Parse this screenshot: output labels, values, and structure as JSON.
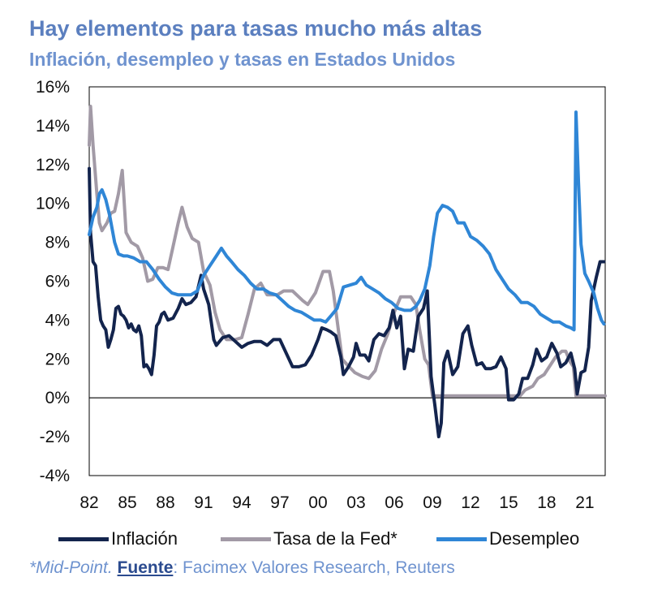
{
  "title": "Hay elementos para tasas mucho más altas",
  "subtitle": "Inflación, desempleo y tasas en Estados Unidos",
  "footnote": {
    "mid": "*Mid-Point.",
    "source_label": "Fuente",
    "source_text": ": Facimex Valores Research, Reuters"
  },
  "colors": {
    "inflation": "#13244d",
    "fed": "#a29aa6",
    "unemployment": "#2f86d6",
    "title": "#5b7fbf"
  },
  "chart_data": {
    "type": "line",
    "title": "Hay elementos para tasas mucho más altas",
    "subtitle": "Inflación, desempleo y tasas en Estados Unidos",
    "xlabel": "",
    "ylabel": "",
    "xlim": [
      1982,
      2022.6
    ],
    "ylim": [
      -4,
      16
    ],
    "y_ticks": [
      -4,
      -2,
      0,
      2,
      4,
      6,
      8,
      10,
      12,
      14,
      16
    ],
    "y_tick_labels": [
      "-4%",
      "-2%",
      "0%",
      "2%",
      "4%",
      "6%",
      "8%",
      "10%",
      "12%",
      "14%",
      "16%"
    ],
    "x_ticks": [
      1982,
      1985,
      1988,
      1991,
      1994,
      1997,
      2000,
      2003,
      2006,
      2009,
      2012,
      2015,
      2018,
      2021
    ],
    "x_tick_labels": [
      "82",
      "85",
      "88",
      "91",
      "94",
      "97",
      "00",
      "03",
      "06",
      "09",
      "12",
      "15",
      "18",
      "21"
    ],
    "legend_position": "bottom",
    "series": [
      {
        "name": "Inflación",
        "color": "#13244d",
        "points": [
          [
            1982.0,
            11.8
          ],
          [
            1982.1,
            8.5
          ],
          [
            1982.3,
            7.0
          ],
          [
            1982.5,
            6.8
          ],
          [
            1982.7,
            5.2
          ],
          [
            1982.9,
            4.0
          ],
          [
            1983.1,
            3.7
          ],
          [
            1983.3,
            3.5
          ],
          [
            1983.5,
            2.6
          ],
          [
            1983.7,
            3.0
          ],
          [
            1983.9,
            3.5
          ],
          [
            1984.1,
            4.6
          ],
          [
            1984.3,
            4.7
          ],
          [
            1984.5,
            4.3
          ],
          [
            1984.7,
            4.2
          ],
          [
            1984.9,
            4.0
          ],
          [
            1985.1,
            3.6
          ],
          [
            1985.3,
            3.8
          ],
          [
            1985.5,
            3.5
          ],
          [
            1985.7,
            3.4
          ],
          [
            1985.9,
            3.7
          ],
          [
            1986.1,
            3.2
          ],
          [
            1986.3,
            1.6
          ],
          [
            1986.5,
            1.7
          ],
          [
            1986.7,
            1.5
          ],
          [
            1986.9,
            1.2
          ],
          [
            1987.1,
            2.2
          ],
          [
            1987.3,
            3.7
          ],
          [
            1987.5,
            3.9
          ],
          [
            1987.7,
            4.3
          ],
          [
            1987.9,
            4.4
          ],
          [
            1988.2,
            4.0
          ],
          [
            1988.6,
            4.1
          ],
          [
            1989.0,
            4.6
          ],
          [
            1989.3,
            5.1
          ],
          [
            1989.6,
            4.8
          ],
          [
            1990.0,
            4.9
          ],
          [
            1990.4,
            5.2
          ],
          [
            1990.8,
            6.3
          ],
          [
            1991.0,
            5.6
          ],
          [
            1991.4,
            4.8
          ],
          [
            1991.8,
            3.0
          ],
          [
            1992.0,
            2.7
          ],
          [
            1992.5,
            3.1
          ],
          [
            1993.0,
            3.2
          ],
          [
            1993.5,
            2.9
          ],
          [
            1994.0,
            2.6
          ],
          [
            1994.5,
            2.8
          ],
          [
            1995.0,
            2.9
          ],
          [
            1995.5,
            2.9
          ],
          [
            1996.0,
            2.7
          ],
          [
            1996.5,
            3.0
          ],
          [
            1997.0,
            3.0
          ],
          [
            1997.5,
            2.3
          ],
          [
            1998.0,
            1.6
          ],
          [
            1998.5,
            1.6
          ],
          [
            1999.0,
            1.7
          ],
          [
            1999.5,
            2.2
          ],
          [
            2000.0,
            3.0
          ],
          [
            2000.3,
            3.6
          ],
          [
            2000.7,
            3.5
          ],
          [
            2001.0,
            3.4
          ],
          [
            2001.4,
            3.2
          ],
          [
            2001.8,
            2.1
          ],
          [
            2002.0,
            1.2
          ],
          [
            2002.4,
            1.6
          ],
          [
            2002.8,
            2.1
          ],
          [
            2003.0,
            2.8
          ],
          [
            2003.3,
            2.2
          ],
          [
            2003.7,
            2.2
          ],
          [
            2004.0,
            1.9
          ],
          [
            2004.4,
            3.0
          ],
          [
            2004.8,
            3.3
          ],
          [
            2005.2,
            3.2
          ],
          [
            2005.6,
            3.6
          ],
          [
            2005.9,
            4.5
          ],
          [
            2006.2,
            3.6
          ],
          [
            2006.5,
            4.2
          ],
          [
            2006.8,
            1.5
          ],
          [
            2007.1,
            2.5
          ],
          [
            2007.5,
            2.4
          ],
          [
            2007.9,
            4.2
          ],
          [
            2008.3,
            4.6
          ],
          [
            2008.6,
            5.5
          ],
          [
            2008.9,
            1.1
          ],
          [
            2009.2,
            -0.4
          ],
          [
            2009.5,
            -2.0
          ],
          [
            2009.7,
            -1.3
          ],
          [
            2009.9,
            1.8
          ],
          [
            2010.2,
            2.4
          ],
          [
            2010.6,
            1.2
          ],
          [
            2011.0,
            1.6
          ],
          [
            2011.4,
            3.3
          ],
          [
            2011.8,
            3.7
          ],
          [
            2012.1,
            2.7
          ],
          [
            2012.5,
            1.7
          ],
          [
            2012.9,
            1.8
          ],
          [
            2013.2,
            1.5
          ],
          [
            2013.6,
            1.5
          ],
          [
            2014.0,
            1.6
          ],
          [
            2014.4,
            2.1
          ],
          [
            2014.8,
            1.5
          ],
          [
            2015.0,
            -0.1
          ],
          [
            2015.4,
            -0.1
          ],
          [
            2015.8,
            0.2
          ],
          [
            2016.1,
            1.0
          ],
          [
            2016.5,
            1.0
          ],
          [
            2016.9,
            1.7
          ],
          [
            2017.2,
            2.5
          ],
          [
            2017.6,
            1.9
          ],
          [
            2018.0,
            2.1
          ],
          [
            2018.4,
            2.8
          ],
          [
            2018.8,
            2.3
          ],
          [
            2019.1,
            1.6
          ],
          [
            2019.5,
            1.8
          ],
          [
            2019.9,
            2.3
          ],
          [
            2020.2,
            1.5
          ],
          [
            2020.4,
            0.2
          ],
          [
            2020.7,
            1.3
          ],
          [
            2021.0,
            1.4
          ],
          [
            2021.3,
            2.6
          ],
          [
            2021.5,
            5.0
          ],
          [
            2021.9,
            6.2
          ],
          [
            2022.2,
            7.0
          ],
          [
            2022.5,
            7.0
          ]
        ]
      },
      {
        "name": "Tasa de la Fed*",
        "color": "#a29aa6",
        "points": [
          [
            1982.0,
            13.0
          ],
          [
            1982.1,
            15.0
          ],
          [
            1982.3,
            13.0
          ],
          [
            1982.6,
            10.5
          ],
          [
            1982.8,
            9.0
          ],
          [
            1983.0,
            8.6
          ],
          [
            1983.4,
            9.0
          ],
          [
            1983.7,
            9.5
          ],
          [
            1984.0,
            9.6
          ],
          [
            1984.3,
            10.5
          ],
          [
            1984.6,
            11.7
          ],
          [
            1984.9,
            8.5
          ],
          [
            1985.3,
            8.0
          ],
          [
            1985.8,
            7.8
          ],
          [
            1986.2,
            7.2
          ],
          [
            1986.6,
            6.0
          ],
          [
            1987.0,
            6.1
          ],
          [
            1987.4,
            6.7
          ],
          [
            1987.8,
            6.7
          ],
          [
            1988.2,
            6.6
          ],
          [
            1988.6,
            7.8
          ],
          [
            1989.0,
            9.0
          ],
          [
            1989.3,
            9.8
          ],
          [
            1989.7,
            8.8
          ],
          [
            1990.1,
            8.2
          ],
          [
            1990.6,
            8.0
          ],
          [
            1991.0,
            6.5
          ],
          [
            1991.5,
            5.8
          ],
          [
            1991.9,
            4.4
          ],
          [
            1992.3,
            3.5
          ],
          [
            1992.8,
            3.0
          ],
          [
            1993.5,
            3.0
          ],
          [
            1994.0,
            3.1
          ],
          [
            1994.5,
            4.3
          ],
          [
            1995.0,
            5.6
          ],
          [
            1995.5,
            5.9
          ],
          [
            1996.0,
            5.3
          ],
          [
            1996.8,
            5.3
          ],
          [
            1997.3,
            5.5
          ],
          [
            1998.0,
            5.5
          ],
          [
            1998.8,
            5.0
          ],
          [
            1999.2,
            4.8
          ],
          [
            1999.8,
            5.4
          ],
          [
            2000.4,
            6.5
          ],
          [
            2000.9,
            6.5
          ],
          [
            2001.2,
            5.5
          ],
          [
            2001.5,
            4.0
          ],
          [
            2001.9,
            2.0
          ],
          [
            2002.3,
            1.7
          ],
          [
            2002.9,
            1.3
          ],
          [
            2003.5,
            1.1
          ],
          [
            2004.0,
            1.0
          ],
          [
            2004.5,
            1.4
          ],
          [
            2005.0,
            2.5
          ],
          [
            2005.5,
            3.3
          ],
          [
            2006.0,
            4.4
          ],
          [
            2006.5,
            5.2
          ],
          [
            2007.3,
            5.2
          ],
          [
            2007.7,
            4.8
          ],
          [
            2008.0,
            3.5
          ],
          [
            2008.4,
            2.0
          ],
          [
            2008.7,
            1.7
          ],
          [
            2009.0,
            0.1
          ],
          [
            2012.0,
            0.1
          ],
          [
            2014.0,
            0.1
          ],
          [
            2015.9,
            0.1
          ],
          [
            2016.3,
            0.4
          ],
          [
            2016.9,
            0.6
          ],
          [
            2017.3,
            1.0
          ],
          [
            2017.8,
            1.2
          ],
          [
            2018.2,
            1.6
          ],
          [
            2018.7,
            2.1
          ],
          [
            2019.2,
            2.4
          ],
          [
            2019.5,
            2.4
          ],
          [
            2019.8,
            1.9
          ],
          [
            2020.1,
            1.6
          ],
          [
            2020.3,
            0.1
          ],
          [
            2022.6,
            0.1
          ]
        ]
      },
      {
        "name": "Desempleo",
        "color": "#2f86d6",
        "points": [
          [
            1982.0,
            8.4
          ],
          [
            1982.3,
            9.3
          ],
          [
            1982.6,
            9.8
          ],
          [
            1982.8,
            10.5
          ],
          [
            1983.0,
            10.7
          ],
          [
            1983.3,
            10.2
          ],
          [
            1983.6,
            9.4
          ],
          [
            1984.0,
            8.0
          ],
          [
            1984.3,
            7.4
          ],
          [
            1984.7,
            7.3
          ],
          [
            1985.0,
            7.3
          ],
          [
            1985.5,
            7.2
          ],
          [
            1986.0,
            7.0
          ],
          [
            1986.5,
            7.0
          ],
          [
            1987.0,
            6.6
          ],
          [
            1987.5,
            6.1
          ],
          [
            1988.0,
            5.7
          ],
          [
            1988.5,
            5.4
          ],
          [
            1989.0,
            5.3
          ],
          [
            1989.5,
            5.3
          ],
          [
            1990.0,
            5.3
          ],
          [
            1990.5,
            5.5
          ],
          [
            1991.0,
            6.3
          ],
          [
            1991.5,
            6.8
          ],
          [
            1992.0,
            7.3
          ],
          [
            1992.4,
            7.7
          ],
          [
            1992.8,
            7.3
          ],
          [
            1993.2,
            7.0
          ],
          [
            1993.7,
            6.6
          ],
          [
            1994.2,
            6.3
          ],
          [
            1994.7,
            5.9
          ],
          [
            1995.2,
            5.6
          ],
          [
            1995.7,
            5.6
          ],
          [
            1996.2,
            5.4
          ],
          [
            1996.7,
            5.3
          ],
          [
            1997.2,
            5.0
          ],
          [
            1997.7,
            4.7
          ],
          [
            1998.2,
            4.5
          ],
          [
            1998.7,
            4.4
          ],
          [
            1999.2,
            4.2
          ],
          [
            1999.7,
            4.0
          ],
          [
            2000.2,
            4.0
          ],
          [
            2000.6,
            3.9
          ],
          [
            2001.0,
            4.2
          ],
          [
            2001.5,
            4.6
          ],
          [
            2002.0,
            5.7
          ],
          [
            2002.5,
            5.8
          ],
          [
            2003.0,
            5.9
          ],
          [
            2003.4,
            6.2
          ],
          [
            2003.8,
            5.8
          ],
          [
            2004.3,
            5.6
          ],
          [
            2004.8,
            5.4
          ],
          [
            2005.3,
            5.1
          ],
          [
            2005.8,
            4.9
          ],
          [
            2006.3,
            4.6
          ],
          [
            2006.8,
            4.5
          ],
          [
            2007.3,
            4.5
          ],
          [
            2007.7,
            4.7
          ],
          [
            2008.0,
            5.0
          ],
          [
            2008.4,
            5.6
          ],
          [
            2008.8,
            6.8
          ],
          [
            2009.1,
            8.3
          ],
          [
            2009.4,
            9.5
          ],
          [
            2009.8,
            9.9
          ],
          [
            2010.2,
            9.8
          ],
          [
            2010.6,
            9.6
          ],
          [
            2011.0,
            9.0
          ],
          [
            2011.5,
            9.0
          ],
          [
            2012.0,
            8.3
          ],
          [
            2012.5,
            8.1
          ],
          [
            2013.0,
            7.8
          ],
          [
            2013.5,
            7.4
          ],
          [
            2014.0,
            6.6
          ],
          [
            2014.5,
            6.1
          ],
          [
            2015.0,
            5.6
          ],
          [
            2015.5,
            5.3
          ],
          [
            2016.0,
            4.9
          ],
          [
            2016.5,
            4.9
          ],
          [
            2017.0,
            4.7
          ],
          [
            2017.5,
            4.3
          ],
          [
            2018.0,
            4.1
          ],
          [
            2018.5,
            3.9
          ],
          [
            2019.0,
            3.9
          ],
          [
            2019.5,
            3.7
          ],
          [
            2019.9,
            3.6
          ],
          [
            2020.15,
            3.5
          ],
          [
            2020.3,
            14.7
          ],
          [
            2020.5,
            11.1
          ],
          [
            2020.7,
            7.9
          ],
          [
            2021.0,
            6.4
          ],
          [
            2021.3,
            6.0
          ],
          [
            2021.7,
            5.4
          ],
          [
            2022.0,
            4.6
          ],
          [
            2022.3,
            4.0
          ],
          [
            2022.5,
            3.8
          ]
        ]
      }
    ]
  }
}
